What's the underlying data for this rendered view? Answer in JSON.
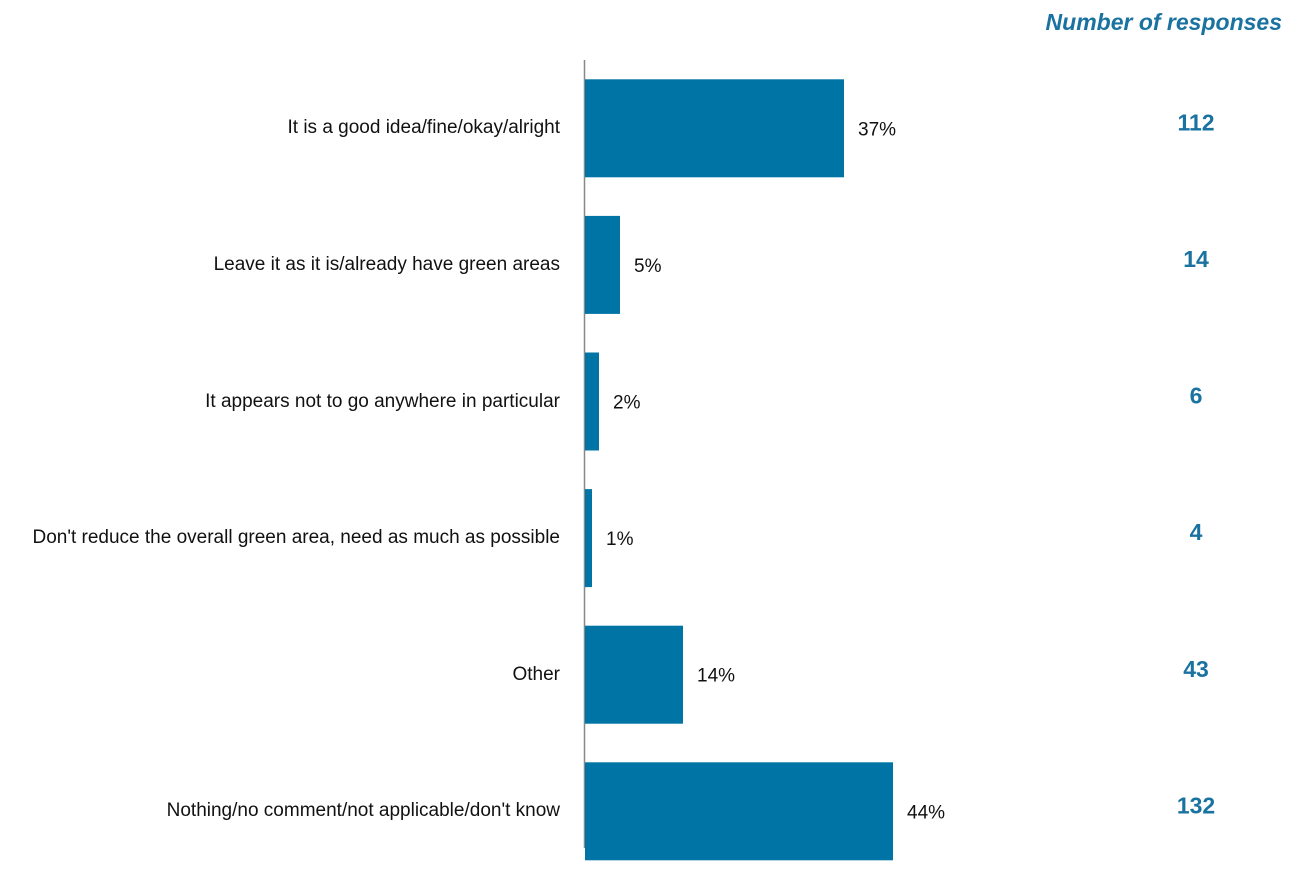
{
  "chart_data": {
    "type": "bar",
    "categories": [
      "It is a good idea/fine/okay/alright",
      "Leave it as it is/already have green areas",
      "It appears not to go anywhere in particular",
      "Don't reduce the overall green area, need as much as possible",
      "Other",
      "Nothing/no comment/not applicable/don't know"
    ],
    "values": [
      37,
      5,
      2,
      1,
      14,
      44
    ],
    "value_labels": [
      "37%",
      "5%",
      "2%",
      "1%",
      "14%",
      "44%"
    ],
    "color": "#0074a5",
    "responses": {
      "title": "Number of responses",
      "values": [
        112,
        14,
        6,
        4,
        43,
        132
      ],
      "color": "#1a72a0"
    }
  }
}
